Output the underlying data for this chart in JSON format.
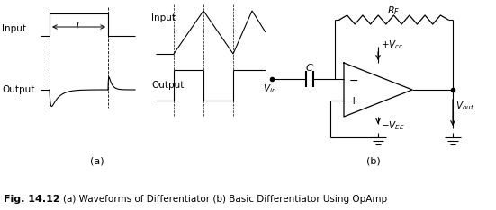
{
  "caption_bold": "Fig. 14.12",
  "caption_text": "    (a) Waveforms of Differentiator (b) Basic Differentiator Using OpAmp",
  "label_a": "(a)",
  "label_b": "(b)",
  "bg_color": "#ffffff",
  "fig_width": 5.51,
  "fig_height": 2.34,
  "dpi": 100
}
